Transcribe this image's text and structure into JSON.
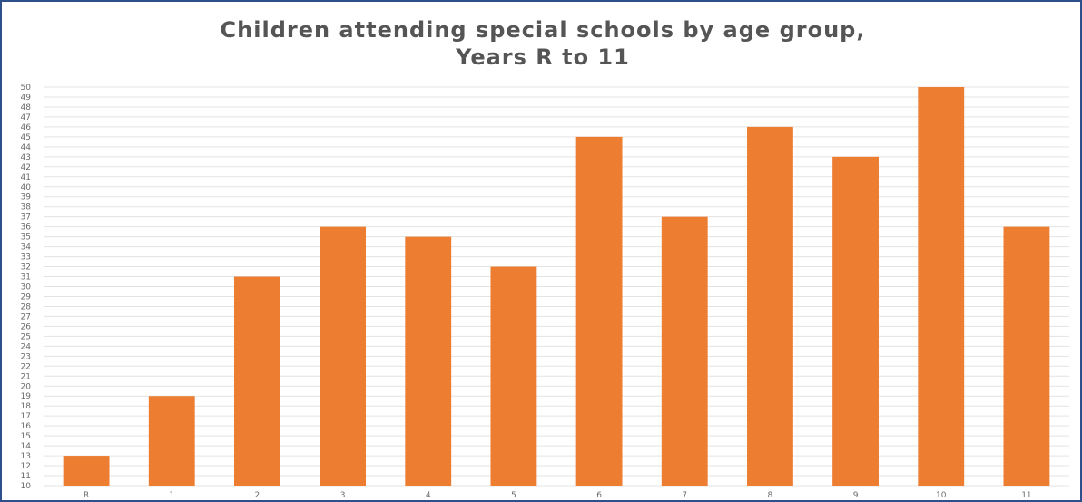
{
  "chart_data": {
    "type": "bar",
    "title_line1": "Children attending special schools by age group,",
    "title_line2": "Years R to 11",
    "categories": [
      "R",
      "1",
      "2",
      "3",
      "4",
      "5",
      "6",
      "7",
      "8",
      "9",
      "10",
      "11"
    ],
    "values": [
      13,
      19,
      31,
      36,
      35,
      32,
      45,
      37,
      46,
      43,
      50,
      36
    ],
    "ylim": [
      10,
      50
    ],
    "ytick_step": 1,
    "grid": true,
    "bar_color": "#ed7d31",
    "frame_color": "#2f4f8a"
  }
}
